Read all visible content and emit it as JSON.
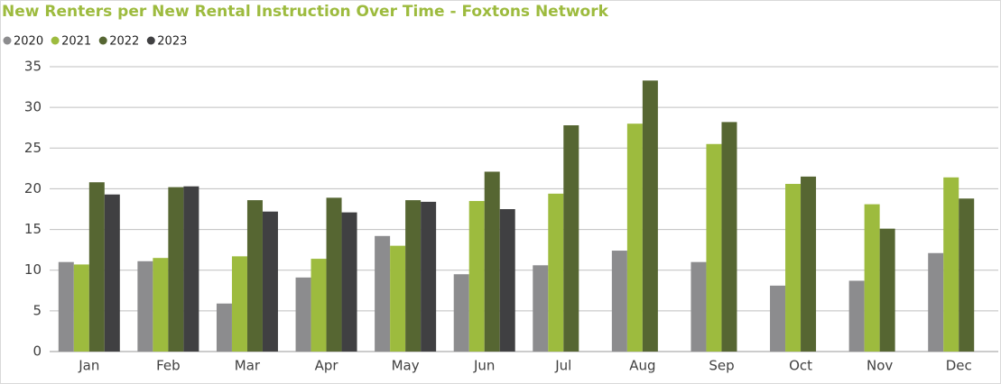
{
  "chart_data": {
    "type": "bar",
    "title": "New Renters per New Rental Instruction Over Time - Foxtons Network",
    "categories": [
      "Jan",
      "Feb",
      "Mar",
      "Apr",
      "May",
      "Jun",
      "Jul",
      "Aug",
      "Sep",
      "Oct",
      "Nov",
      "Dec"
    ],
    "series": [
      {
        "name": "2020",
        "color": "#8c8c8e",
        "values": [
          11.0,
          11.1,
          5.9,
          9.1,
          14.2,
          9.5,
          10.6,
          12.4,
          11.0,
          8.1,
          8.7,
          12.1
        ]
      },
      {
        "name": "2021",
        "color": "#9dbb3e",
        "values": [
          10.7,
          11.5,
          11.7,
          11.4,
          13.0,
          18.5,
          19.4,
          28.0,
          25.5,
          20.6,
          18.1,
          21.4
        ]
      },
      {
        "name": "2022",
        "color": "#566632",
        "values": [
          20.8,
          20.2,
          18.6,
          18.9,
          18.6,
          22.1,
          27.8,
          33.3,
          28.2,
          21.5,
          15.1,
          18.8
        ]
      },
      {
        "name": "2023",
        "color": "#404042",
        "values": [
          19.3,
          20.3,
          17.2,
          17.1,
          18.4,
          17.5,
          null,
          null,
          null,
          null,
          null,
          null
        ]
      }
    ],
    "ylim": [
      0,
      35
    ],
    "yticks": [
      0,
      5,
      10,
      15,
      20,
      25,
      30,
      35
    ],
    "grid": true,
    "legend": "top-left"
  }
}
